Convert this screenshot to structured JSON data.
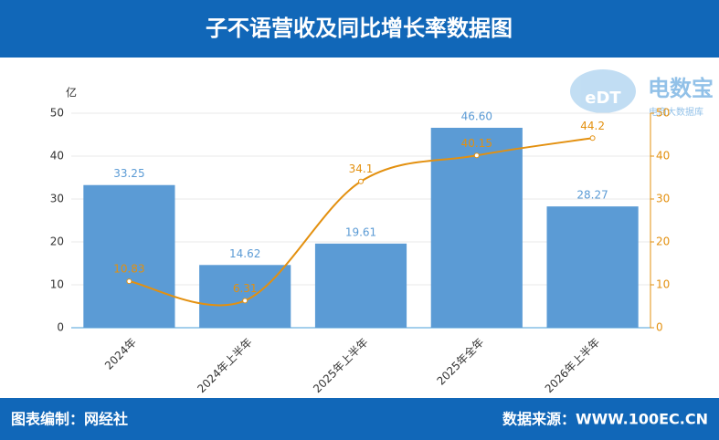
{
  "header": {
    "title": "子不语营收及同比增长率数据图"
  },
  "footer": {
    "left": "图表编制：网经社",
    "right": "数据来源：WWW.100EC.CN"
  },
  "watermark": {
    "logo": "eDT",
    "name": "电数宝",
    "tagline": "电商大数据库"
  },
  "chart_data": {
    "type": "bar",
    "y_unit": "亿",
    "categories": [
      "2024年",
      "2024年上半年",
      "2025年上半年",
      "2025年全年",
      "2026年上半年"
    ],
    "series": [
      {
        "type": "bar",
        "color": "#5b9bd5",
        "values": [
          33.25,
          14.62,
          19.61,
          46.6,
          28.27
        ],
        "value_labels": [
          "33.25",
          "14.62",
          "19.61",
          "46.60",
          "28.27"
        ]
      },
      {
        "type": "line",
        "axis": "y2",
        "color": "#e3900f",
        "smooth": true,
        "values": [
          10.83,
          6.31,
          34.1,
          40.15,
          44.2
        ]
      }
    ],
    "ylim": [
      0,
      50
    ],
    "yticks": [
      0,
      10,
      20,
      30,
      40,
      50
    ],
    "y2lim": [
      0,
      50
    ],
    "y2ticks": [
      0,
      10,
      20,
      30,
      40,
      50
    ],
    "grid": true
  }
}
